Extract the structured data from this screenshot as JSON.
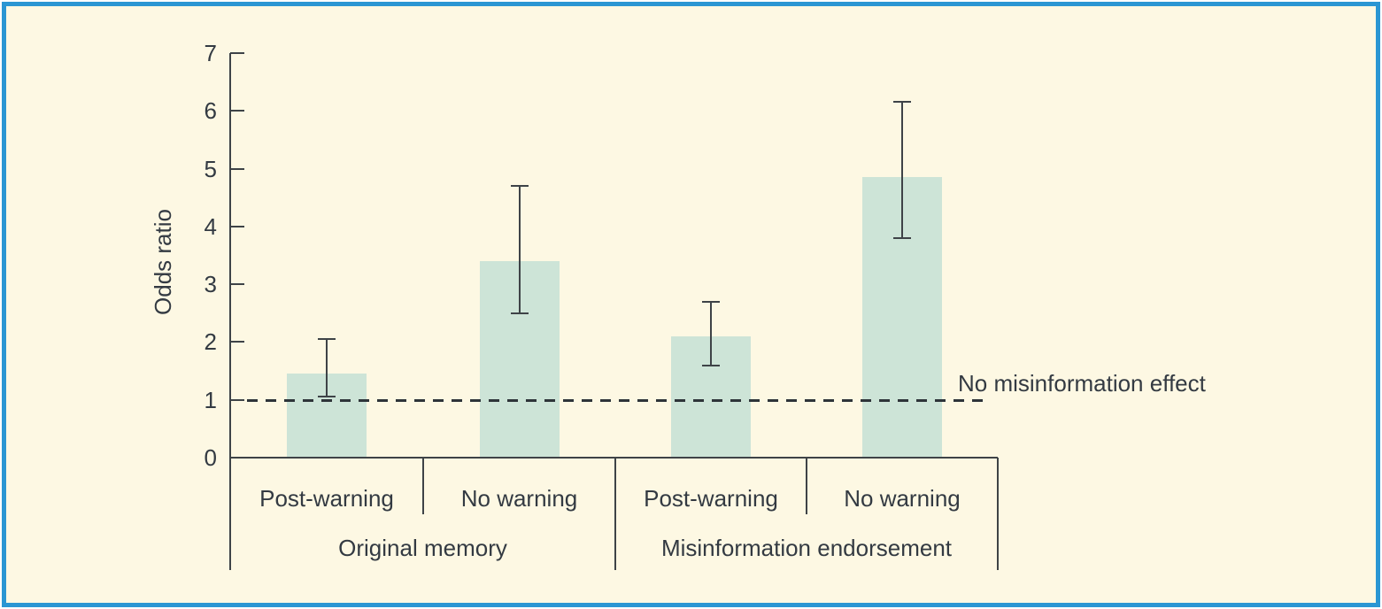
{
  "figure": {
    "background_color": "#FDF8E3",
    "border_color": "#2B96D3",
    "bar_color": "#CDE4D7",
    "axis_color": "#3E4347",
    "line_dark_color": "#2E3439",
    "text_color": "#333A42"
  },
  "chart_data": {
    "type": "bar",
    "title": "",
    "xlabel": "",
    "ylabel": "Odds ratio",
    "ylim": [
      0,
      7
    ],
    "yticks": [
      0,
      1,
      2,
      3,
      4,
      5,
      6,
      7
    ],
    "grid": false,
    "legend": false,
    "error_bars": true,
    "groups": [
      {
        "label": "Original memory",
        "bars": [
          {
            "label": "Post-warning",
            "value": 1.45,
            "ci_low": 1.05,
            "ci_high": 2.05
          },
          {
            "label": "No warning",
            "value": 3.4,
            "ci_low": 2.5,
            "ci_high": 4.7
          }
        ]
      },
      {
        "label": "Misinformation endorsement",
        "bars": [
          {
            "label": "Post-warning",
            "value": 2.1,
            "ci_low": 1.6,
            "ci_high": 2.7
          },
          {
            "label": "No warning",
            "value": 4.85,
            "ci_low": 3.8,
            "ci_high": 6.15
          }
        ]
      }
    ],
    "reference_line": {
      "value": 1,
      "style": "dashed",
      "label": "No misinformation effect"
    }
  }
}
